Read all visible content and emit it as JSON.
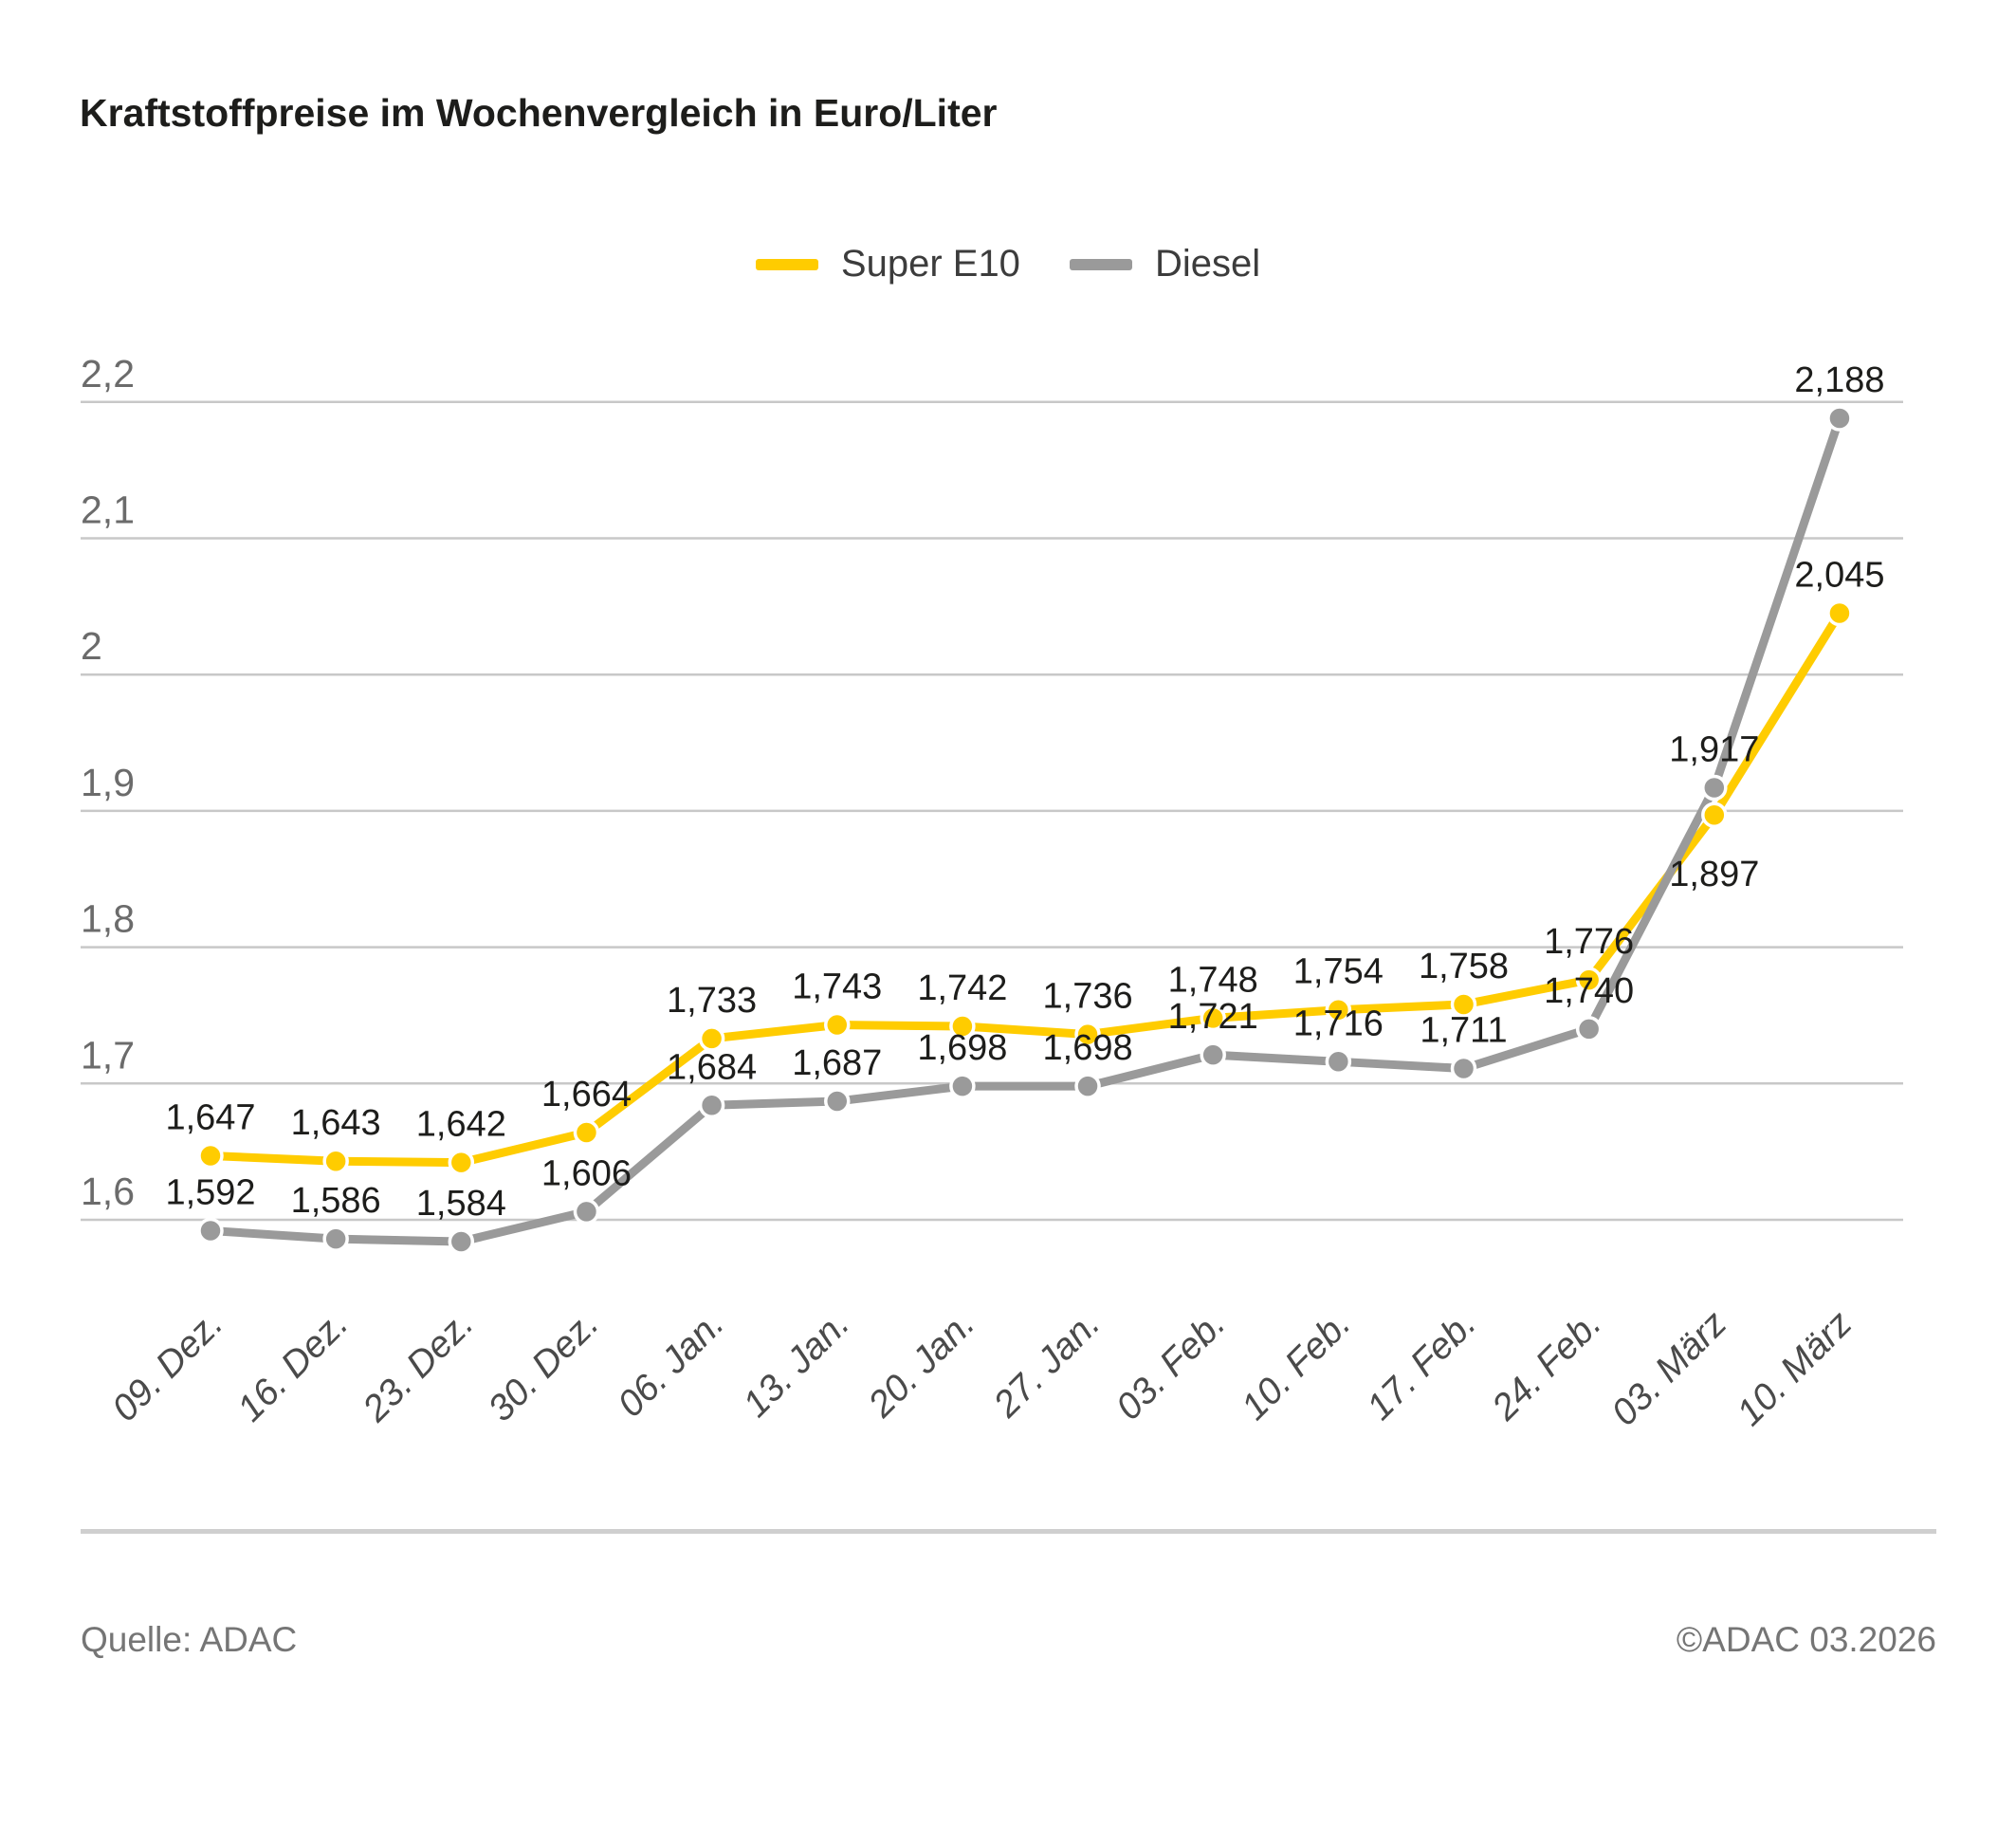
{
  "title": "Kraftstoffpreise im Wochenvergleich in Euro/Liter",
  "legend": [
    {
      "label": "Super E10",
      "color": "#ffcc00"
    },
    {
      "label": "Diesel",
      "color": "#9a9a9a"
    }
  ],
  "footer": {
    "source": "Quelle: ADAC",
    "copyright": "©ADAC 03.2026"
  },
  "chart_data": {
    "type": "line",
    "title": "Kraftstoffpreise im Wochenvergleich in Euro/Liter",
    "categories": [
      "09. Dez.",
      "16. Dez.",
      "23. Dez.",
      "30. Dez.",
      "06. Jan.",
      "13. Jan.",
      "20. Jan.",
      "27. Jan.",
      "03. Feb.",
      "10. Feb.",
      "17. Feb.",
      "24. Feb.",
      "03. März",
      "10. März"
    ],
    "series": [
      {
        "name": "Super E10",
        "color": "#ffcc00",
        "values": [
          1.647,
          1.643,
          1.642,
          1.664,
          1.733,
          1.743,
          1.742,
          1.736,
          1.748,
          1.754,
          1.758,
          1.776,
          1.897,
          2.045
        ],
        "labels": [
          "1,647",
          "1,643",
          "1,642",
          "1,664",
          "1,733",
          "1,743",
          "1,742",
          "1,736",
          "1,748",
          "1,754",
          "1,758",
          "1,776",
          "1,897",
          "2,045"
        ]
      },
      {
        "name": "Diesel",
        "color": "#9a9a9a",
        "values": [
          1.592,
          1.586,
          1.584,
          1.606,
          1.684,
          1.687,
          1.698,
          1.698,
          1.721,
          1.716,
          1.711,
          1.74,
          1.917,
          2.188
        ],
        "labels": [
          "1,592",
          "1,586",
          "1,584",
          "1,606",
          "1,684",
          "1,687",
          "1,698",
          "1,698",
          "1,721",
          "1,716",
          "1,711",
          "1,740",
          "1,917",
          "2,188"
        ]
      }
    ],
    "y_ticks": [
      {
        "value": 2.2,
        "label": "2,2"
      },
      {
        "value": 2.1,
        "label": "2,1"
      },
      {
        "value": 2.0,
        "label": "2"
      },
      {
        "value": 1.9,
        "label": "1,9"
      },
      {
        "value": 1.8,
        "label": "1,8"
      },
      {
        "value": 1.7,
        "label": "1,7"
      },
      {
        "value": 1.6,
        "label": "1,6"
      }
    ],
    "ylim": [
      1.6,
      2.2
    ],
    "grid": true,
    "legend_position": "top",
    "unit": "Euro/Liter"
  }
}
